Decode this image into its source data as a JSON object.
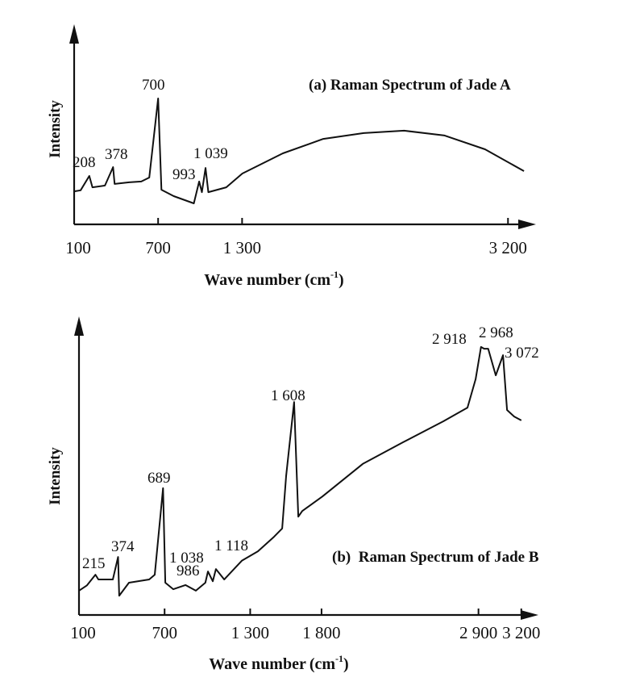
{
  "chart_data": [
    {
      "type": "line",
      "title": "(a) Raman Spectrum of Jade A",
      "xlabel": "Wave number",
      "xlabel_unit_base": "(cm",
      "xlabel_unit_exp": "-1",
      "xlabel_unit_close": ")",
      "ylabel": "Intensity",
      "xlim": [
        100,
        3400
      ],
      "ylim": [
        0,
        100
      ],
      "x_ticks": [
        100,
        700,
        1300,
        3200
      ],
      "x_tick_labels": [
        "100",
        "700",
        "1 300",
        "3 200"
      ],
      "y_ticks": [],
      "grid": false,
      "color": "#111111",
      "peak_labels": [
        "208",
        "378",
        "700",
        "993",
        "1 039"
      ],
      "series": [
        {
          "x": [
            100,
            146,
            208,
            231,
            320,
            378,
            389,
            493,
            580,
            637,
            700,
            724,
            811,
            955,
            993,
            1013,
            1039,
            1059,
            1187,
            1302,
            1591,
            1880,
            2169,
            2458,
            2747,
            3036,
            3314
          ],
          "y": [
            16.5,
            17,
            24.2,
            18.5,
            19.4,
            28.6,
            20.2,
            21,
            21.4,
            23.4,
            62.9,
            17.3,
            14.1,
            10.5,
            21.4,
            16.1,
            28.2,
            16.1,
            18.5,
            25.4,
            35.5,
            42.7,
            45.6,
            46.8,
            44.4,
            37.5,
            26.6
          ]
        }
      ]
    },
    {
      "type": "line",
      "title": "(b)  Raman Spectrum of Jade B",
      "xlabel": "Wave number",
      "xlabel_unit_base": "(cm",
      "xlabel_unit_exp": "-1",
      "xlabel_unit_close": ")",
      "ylabel": "Intensity",
      "xlim": [
        100,
        3320
      ],
      "ylim": [
        0,
        100
      ],
      "x_ticks": [
        100,
        700,
        1300,
        1800,
        2900,
        3200
      ],
      "x_tick_labels": [
        "100",
        "700",
        "1 300",
        "1 800",
        "2 900",
        "3 200"
      ],
      "y_ticks": [],
      "grid": false,
      "color": "#111111",
      "peak_labels": [
        "215",
        "374",
        "689",
        "986",
        "1 038",
        "1 118",
        "1 608",
        "2 918",
        "2 968",
        "3 072"
      ],
      "series": [
        {
          "x": [
            100,
            156,
            215,
            236,
            337,
            374,
            382,
            450,
            592,
            631,
            689,
            705,
            761,
            846,
            919,
            986,
            1004,
            1038,
            1060,
            1118,
            1128,
            1241,
            1354,
            1467,
            1524,
            1552,
            1608,
            1637,
            1665,
            1806,
            2089,
            2371,
            2654,
            2823,
            2880,
            2918,
            2940,
            2968,
            3021,
            3072,
            3100,
            3150,
            3200
          ],
          "y": [
            8.2,
            10,
            13.6,
            12,
            12,
            19.6,
            6.5,
            10.9,
            12,
            13.6,
            42.8,
            10.9,
            8.7,
            10.1,
            8.2,
            10.9,
            14.7,
            11.4,
            15.5,
            12,
            12.5,
            18.3,
            21.5,
            26.4,
            29.2,
            46.9,
            71.9,
            33.2,
            35.1,
            40,
            51,
            58.3,
            65.4,
            70,
            79.6,
            90.5,
            89.9,
            89.9,
            80.9,
            87.7,
            69.2,
            67,
            65.7
          ]
        }
      ]
    }
  ]
}
